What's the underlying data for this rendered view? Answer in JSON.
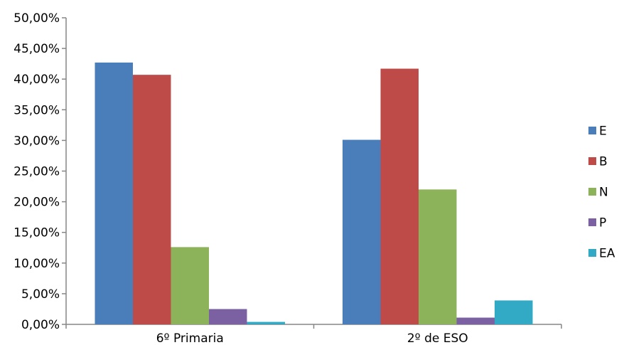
{
  "chart_data": {
    "type": "bar",
    "title": "",
    "xlabel": "",
    "ylabel": "",
    "categories": [
      "6º Primaria",
      "2º de ESO"
    ],
    "series": [
      {
        "name": "E",
        "color": "#4a7ebb",
        "values": [
          42.7,
          30.1
        ]
      },
      {
        "name": "B",
        "color": "#be4b48",
        "values": [
          40.7,
          41.7
        ]
      },
      {
        "name": "N",
        "color": "#8db35a",
        "values": [
          12.6,
          22.0
        ]
      },
      {
        "name": "P",
        "color": "#7b61a1",
        "values": [
          2.5,
          1.1
        ]
      },
      {
        "name": "EA",
        "color": "#32aac6",
        "values": [
          0.4,
          3.9
        ]
      }
    ],
    "ylim": [
      0,
      50
    ],
    "yticks": [
      0,
      5,
      10,
      15,
      20,
      25,
      30,
      35,
      40,
      45,
      50
    ],
    "ytick_labels": [
      "0,00%",
      "5,00%",
      "10,00%",
      "15,00%",
      "20,00%",
      "25,00%",
      "30,00%",
      "35,00%",
      "40,00%",
      "45,00%",
      "50,00%"
    ],
    "grid": false,
    "legend_position": "right"
  }
}
